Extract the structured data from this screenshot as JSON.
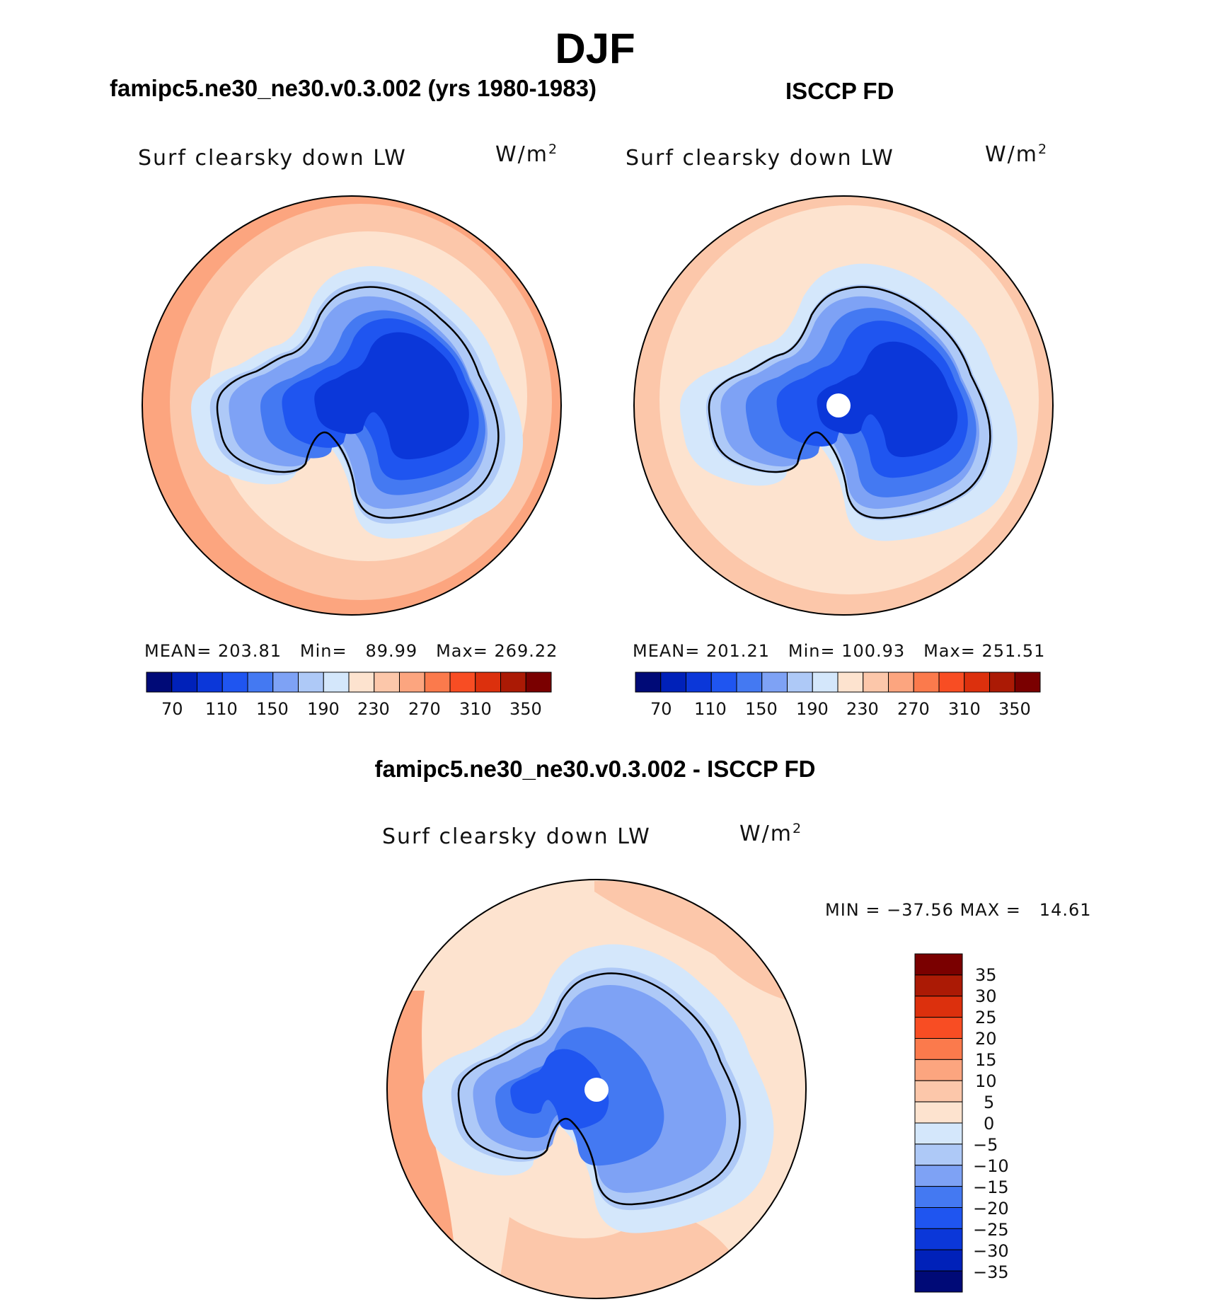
{
  "figure": {
    "season": "DJF"
  },
  "colorbar_top": {
    "colors": [
      "#000a77",
      "#0021b9",
      "#0b37d9",
      "#1f55f0",
      "#4479f2",
      "#7ea2f5",
      "#aec9f7",
      "#d4e7fb",
      "#fde3cf",
      "#fcc7aa",
      "#fca57f",
      "#fb7a4c",
      "#f84d23",
      "#dc300d",
      "#ab1a05",
      "#7a0000"
    ],
    "tick_labels": [
      "70",
      "110",
      "150",
      "190",
      "230",
      "270",
      "310",
      "350"
    ]
  },
  "colorbar_diff": {
    "colors": [
      "#000a77",
      "#0021b9",
      "#0b37d9",
      "#1f55f0",
      "#4479f2",
      "#7ea2f5",
      "#aec9f7",
      "#d4e7fb",
      "#fde3cf",
      "#fcc7aa",
      "#fca57f",
      "#fb7a4c",
      "#f84d23",
      "#dc300d",
      "#ab1a05",
      "#7a0000"
    ],
    "tick_labels": [
      "35",
      "30",
      "25",
      "20",
      "15",
      "10",
      "5",
      "0",
      "−5",
      "−10",
      "−15",
      "−20",
      "−25",
      "−30",
      "−35"
    ]
  },
  "panels": [
    {
      "title": "famipc5.ne30_ne30.v0.3.002 (yrs 1980-1983)",
      "variable": "Surf clearsky down LW",
      "units_base": "W/m",
      "units_exp": "2",
      "mean_label": "MEAN=",
      "mean": "203.81",
      "min_label": "Min=",
      "min": "89.99",
      "max_label": "Max=",
      "max": "269.22"
    },
    {
      "title": "ISCCP FD",
      "variable": "Surf clearsky down LW",
      "units_base": "W/m",
      "units_exp": "2",
      "mean_label": "MEAN=",
      "mean": "201.21",
      "min_label": "Min=",
      "min": "100.93",
      "max_label": "Max=",
      "max": "251.51"
    },
    {
      "title": "famipc5.ne30_ne30.v0.3.002 - ISCCP FD",
      "variable": "Surf clearsky down LW",
      "units_base": "W/m",
      "units_exp": "2",
      "min_label": "MIN =",
      "min": "−37.56",
      "max_label": "MAX =",
      "max": "14.61"
    }
  ]
}
